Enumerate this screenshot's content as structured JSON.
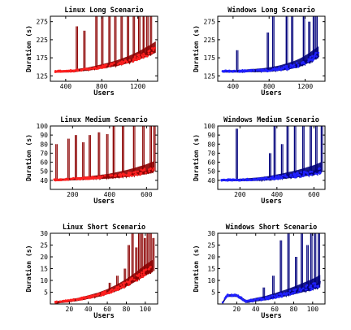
{
  "chart_data": [
    {
      "type": "line",
      "title": "Linux Long Scenario",
      "xlabel": "Users",
      "ylabel": "Duration (s)",
      "xlim": [
        230,
        1420
      ],
      "ylim": [
        110,
        290
      ],
      "xticks": [
        400,
        800,
        1200
      ],
      "yticks": [
        125,
        175,
        225,
        275
      ],
      "colors": {
        "line": "#8b0000",
        "points": "#ff2020"
      },
      "series": [
        {
          "name": "",
          "points": [
            [
              280,
              136
            ],
            [
              350,
              137
            ],
            [
              420,
              137
            ],
            [
              500,
              138
            ],
            [
              550,
              140
            ],
            [
              600,
              141
            ],
            [
              650,
              142
            ],
            [
              700,
              144
            ],
            [
              750,
              146
            ],
            [
              800,
              148
            ],
            [
              850,
              150
            ],
            [
              900,
              152
            ],
            [
              950,
              154
            ],
            [
              1000,
              157
            ],
            [
              1050,
              160
            ],
            [
              1100,
              163
            ],
            [
              1150,
              167
            ],
            [
              1200,
              171
            ],
            [
              1250,
              176
            ],
            [
              1300,
              181
            ],
            [
              1350,
              186
            ],
            [
              1400,
              192
            ]
          ],
          "spikes": [
            [
              518,
              262
            ],
            [
              602,
              250
            ],
            [
              735,
              290
            ],
            [
              800,
              290
            ],
            [
              880,
              290
            ],
            [
              945,
              290
            ],
            [
              1015,
              290
            ],
            [
              1085,
              290
            ],
            [
              1150,
              290
            ],
            [
              1210,
              290
            ],
            [
              1260,
              290
            ],
            [
              1300,
              290
            ],
            [
              1340,
              290
            ]
          ]
        }
      ]
    },
    {
      "type": "line",
      "title": "Windows Long Scenario",
      "xlabel": "Users",
      "ylabel": "Duration (s)",
      "xlim": [
        230,
        1420
      ],
      "ylim": [
        110,
        290
      ],
      "xticks": [
        400,
        800,
        1200
      ],
      "yticks": [
        125,
        175,
        225,
        275
      ],
      "colors": {
        "line": "#00007a",
        "points": "#2020ff"
      },
      "series": [
        {
          "name": "",
          "points": [
            [
              280,
              137
            ],
            [
              350,
              137
            ],
            [
              400,
              137
            ],
            [
              500,
              137
            ],
            [
              600,
              138
            ],
            [
              700,
              138
            ],
            [
              800,
              139
            ],
            [
              850,
              140
            ],
            [
              900,
              141
            ],
            [
              950,
              143
            ],
            [
              1000,
              145
            ],
            [
              1050,
              147
            ],
            [
              1100,
              150
            ],
            [
              1150,
              154
            ],
            [
              1200,
              159
            ],
            [
              1250,
              165
            ],
            [
              1300,
              172
            ],
            [
              1350,
              178
            ]
          ],
          "spikes": [
            [
              440,
              196
            ],
            [
              780,
              245
            ],
            [
              840,
              290
            ],
            [
              990,
              290
            ],
            [
              1050,
              290
            ],
            [
              1180,
              290
            ],
            [
              1240,
              275
            ],
            [
              1290,
              290
            ],
            [
              1320,
              290
            ]
          ]
        }
      ]
    },
    {
      "type": "line",
      "title": "Linux Medium Scenario",
      "xlabel": "Users",
      "ylabel": "Duration (s)",
      "xlim": [
        80,
        660
      ],
      "ylim": [
        30,
        100
      ],
      "xticks": [
        200,
        400,
        600
      ],
      "yticks": [
        40,
        50,
        60,
        70,
        80,
        90,
        100
      ],
      "colors": {
        "line": "#8b0000",
        "points": "#ff2020"
      },
      "series": [
        {
          "name": "",
          "points": [
            [
              100,
              40
            ],
            [
              150,
              40.5
            ],
            [
              200,
              41
            ],
            [
              250,
              41.5
            ],
            [
              300,
              42
            ],
            [
              350,
              42.5
            ],
            [
              400,
              43
            ],
            [
              450,
              44
            ],
            [
              500,
              45
            ],
            [
              550,
              46.5
            ],
            [
              600,
              48
            ],
            [
              640,
              50
            ]
          ],
          "spikes": [
            [
              110,
              80
            ],
            [
              175,
              86
            ],
            [
              215,
              90
            ],
            [
              255,
              82
            ],
            [
              290,
              90
            ],
            [
              340,
              93
            ],
            [
              385,
              91
            ],
            [
              420,
              100
            ],
            [
              470,
              100
            ],
            [
              530,
              100
            ],
            [
              580,
              100
            ],
            [
              620,
              100
            ],
            [
              640,
              100
            ]
          ]
        }
      ]
    },
    {
      "type": "line",
      "title": "Windows Medium Scenario",
      "xlabel": "Users",
      "ylabel": "Duration (s)",
      "xlim": [
        80,
        660
      ],
      "ylim": [
        30,
        100
      ],
      "xticks": [
        200,
        400,
        600
      ],
      "yticks": [
        40,
        50,
        60,
        70,
        80,
        90,
        100
      ],
      "colors": {
        "line": "#00007a",
        "points": "#2020ff"
      },
      "series": [
        {
          "name": "",
          "points": [
            [
              100,
              40
            ],
            [
              200,
              40
            ],
            [
              300,
              40.5
            ],
            [
              350,
              41
            ],
            [
              400,
              42
            ],
            [
              450,
              43
            ],
            [
              500,
              44
            ],
            [
              550,
              45.5
            ],
            [
              600,
              47
            ],
            [
              640,
              49
            ]
          ],
          "spikes": [
            [
              180,
              97
            ],
            [
              360,
              70
            ],
            [
              385,
              100
            ],
            [
              425,
              80
            ],
            [
              455,
              100
            ],
            [
              495,
              100
            ],
            [
              540,
              100
            ],
            [
              580,
              100
            ],
            [
              610,
              100
            ],
            [
              640,
              100
            ]
          ]
        }
      ]
    },
    {
      "type": "line",
      "title": "Linux Short Scenario",
      "xlabel": "Users",
      "ylabel": "Duration (s)",
      "xlim": [
        0,
        113
      ],
      "ylim": [
        0,
        30
      ],
      "xticks": [
        20,
        40,
        60,
        80,
        100
      ],
      "yticks": [
        5,
        10,
        15,
        20,
        25,
        30
      ],
      "colors": {
        "line": "#8b0000",
        "points": "#ff2020"
      },
      "series": [
        {
          "name": "",
          "points": [
            [
              5,
              0.5
            ],
            [
              10,
              0.8
            ],
            [
              20,
              1.2
            ],
            [
              30,
              1.8
            ],
            [
              40,
              2.6
            ],
            [
              50,
              3.4
            ],
            [
              60,
              4.5
            ],
            [
              70,
              6
            ],
            [
              80,
              7.8
            ],
            [
              90,
              10
            ],
            [
              100,
              12.5
            ],
            [
              108,
              14
            ]
          ],
          "spikes": [
            [
              62,
              9
            ],
            [
              70,
              12
            ],
            [
              78,
              15
            ],
            [
              82,
              25
            ],
            [
              86,
              30
            ],
            [
              90,
              24
            ],
            [
              93,
              30
            ],
            [
              96,
              30
            ],
            [
              99,
              28
            ],
            [
              102,
              30
            ],
            [
              105,
              30
            ],
            [
              108,
              28
            ]
          ]
        }
      ]
    },
    {
      "type": "line",
      "title": "Windows Short Scenario",
      "xlabel": "Users",
      "ylabel": "Duration (s)",
      "xlim": [
        0,
        113
      ],
      "ylim": [
        0,
        30
      ],
      "xticks": [
        20,
        40,
        60,
        80,
        100
      ],
      "yticks": [
        5,
        10,
        15,
        20,
        25,
        30
      ],
      "colors": {
        "line": "#00007a",
        "points": "#2020ff"
      },
      "series": [
        {
          "name": "",
          "points": [
            [
              5,
              0.3
            ],
            [
              10,
              3.5
            ],
            [
              20,
              3.5
            ],
            [
              30,
              0.8
            ],
            [
              40,
              1.5
            ],
            [
              50,
              2
            ],
            [
              60,
              2.8
            ],
            [
              70,
              3.6
            ],
            [
              80,
              4.5
            ],
            [
              90,
              5.5
            ],
            [
              100,
              6.5
            ],
            [
              108,
              7.5
            ]
          ],
          "spikes": [
            [
              48,
              7
            ],
            [
              58,
              12
            ],
            [
              66,
              27
            ],
            [
              74,
              30
            ],
            [
              82,
              20
            ],
            [
              88,
              30
            ],
            [
              94,
              25
            ],
            [
              98,
              30
            ],
            [
              102,
              30
            ],
            [
              106,
              30
            ]
          ]
        }
      ]
    }
  ]
}
